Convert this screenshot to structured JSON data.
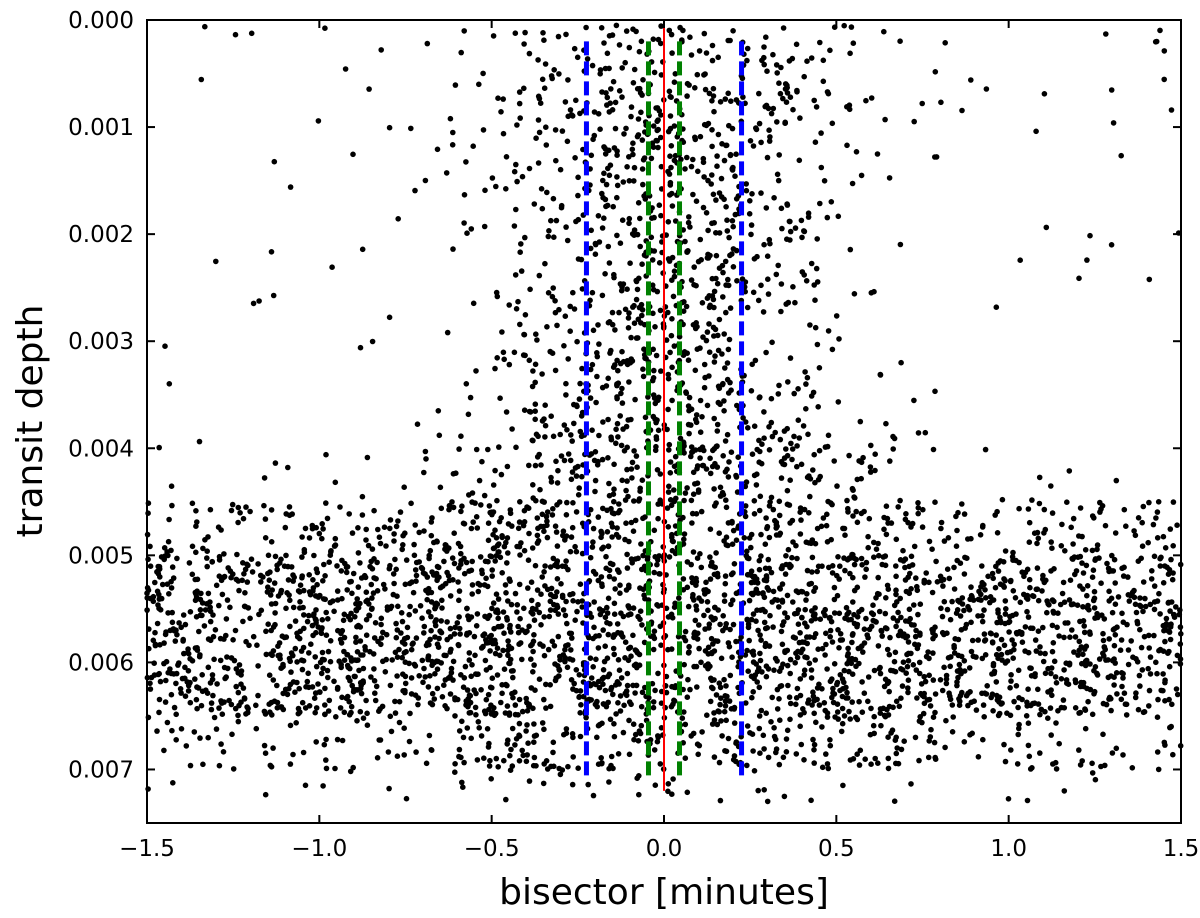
{
  "chart_data": {
    "type": "scatter",
    "title": "",
    "xlabel": "bisector [minutes]",
    "ylabel": "transit depth",
    "xlim": [
      -1.5,
      1.5
    ],
    "ylim": [
      0.0075,
      0.0
    ],
    "y_axis_inverted": true,
    "grid": false,
    "legend": "none",
    "x_ticks": [
      -1.5,
      -1.0,
      -0.5,
      0.0,
      0.5,
      1.0,
      1.5
    ],
    "x_tick_labels": [
      "−1.5",
      "−1.0",
      "−0.5",
      "0.0",
      "0.5",
      "1.0",
      "1.5"
    ],
    "y_ticks": [
      0.0,
      0.001,
      0.002,
      0.003,
      0.004,
      0.005,
      0.006,
      0.007
    ],
    "y_tick_labels": [
      "0.000",
      "0.001",
      "0.002",
      "0.003",
      "0.004",
      "0.005",
      "0.006",
      "0.007"
    ],
    "scatter_color": "#000000",
    "scatter_density_profile": [
      {
        "depth": 0.00025,
        "n": 120,
        "spread": 0.32,
        "tail": 0.13
      },
      {
        "depth": 0.00075,
        "n": 160,
        "spread": 0.3,
        "tail": 0.11
      },
      {
        "depth": 0.00125,
        "n": 150,
        "spread": 0.27,
        "tail": 0.09
      },
      {
        "depth": 0.00175,
        "n": 140,
        "spread": 0.25,
        "tail": 0.07
      },
      {
        "depth": 0.00225,
        "n": 140,
        "spread": 0.24,
        "tail": 0.06
      },
      {
        "depth": 0.00275,
        "n": 140,
        "spread": 0.24,
        "tail": 0.05
      },
      {
        "depth": 0.00325,
        "n": 150,
        "spread": 0.25,
        "tail": 0.05
      },
      {
        "depth": 0.00375,
        "n": 170,
        "spread": 0.27,
        "tail": 0.05
      },
      {
        "depth": 0.00425,
        "n": 230,
        "spread": 0.33,
        "tail": 0.12
      },
      {
        "depth": 0.00475,
        "n": 480,
        "spread": 0.55,
        "tail": 0.6
      },
      {
        "depth": 0.00525,
        "n": 820,
        "spread": 0.7,
        "tail": 0.92
      },
      {
        "depth": 0.00575,
        "n": 900,
        "spread": 0.72,
        "tail": 0.95
      },
      {
        "depth": 0.00625,
        "n": 820,
        "spread": 0.7,
        "tail": 0.92
      },
      {
        "depth": 0.00675,
        "n": 340,
        "spread": 0.6,
        "tail": 0.55
      },
      {
        "depth": 0.00715,
        "n": 70,
        "spread": 0.55,
        "tail": 0.45
      }
    ],
    "vertical_lines": [
      {
        "x": 0.0,
        "y_range": [
          0.0,
          0.0072
        ],
        "color": "#ff0000",
        "style": "solid"
      },
      {
        "x": -0.045,
        "y_range": [
          0.0002,
          0.0071
        ],
        "color": "#008000",
        "style": "dashed"
      },
      {
        "x": 0.045,
        "y_range": [
          0.0002,
          0.0071
        ],
        "color": "#008000",
        "style": "dashed"
      },
      {
        "x": -0.225,
        "y_range": [
          0.0002,
          0.0071
        ],
        "color": "#0000ff",
        "style": "dashed"
      },
      {
        "x": 0.225,
        "y_range": [
          0.0002,
          0.0071
        ],
        "color": "#0000ff",
        "style": "dashed"
      }
    ]
  }
}
